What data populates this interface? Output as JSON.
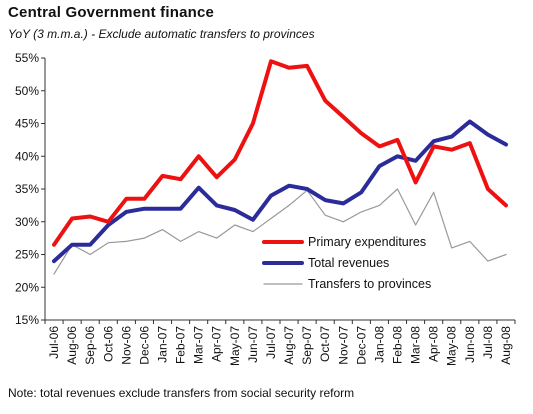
{
  "chart_data": {
    "type": "line",
    "title": "Central Government finance",
    "subtitle": "YoY (3 m.m.a.) - Exclude automatic transfers to provinces",
    "note": "Note: total revenues exclude transfers from social security reform",
    "ylim": [
      15,
      55
    ],
    "yticks": [
      "15%",
      "20%",
      "25%",
      "30%",
      "35%",
      "40%",
      "45%",
      "50%",
      "55%"
    ],
    "y_tick_values": [
      15,
      20,
      25,
      30,
      35,
      40,
      45,
      50,
      55
    ],
    "grid": false,
    "legend_placement": "bottom-right",
    "categories": [
      "Jul-06",
      "Aug-06",
      "Sep-06",
      "Oct-06",
      "Nov-06",
      "Dec-06",
      "Jan-07",
      "Feb-07",
      "Mar-07",
      "Apr-07",
      "May-07",
      "Jun-07",
      "Jul-07",
      "Aug-07",
      "Sep-07",
      "Oct-07",
      "Nov-07",
      "Dec-07",
      "Jan-08",
      "Feb-08",
      "Mar-08",
      "Apr-08",
      "May-08",
      "Jun-08",
      "Jul-08",
      "Aug-08"
    ],
    "series": [
      {
        "name": "Primary expenditures",
        "color": "#ee1111",
        "stroke": "thick",
        "values": [
          26.5,
          30.5,
          30.8,
          30,
          33.5,
          33.5,
          37,
          36.5,
          40,
          36.8,
          39.5,
          45,
          54.5,
          53.5,
          53.8,
          48.5,
          46,
          43.5,
          41.5,
          42.5,
          36,
          41.5,
          41,
          42,
          35,
          32.5
        ]
      },
      {
        "name": "Total revenues",
        "color": "#2b2b99",
        "stroke": "thick",
        "values": [
          24,
          26.5,
          26.5,
          29.5,
          31.5,
          32,
          32,
          32,
          35.2,
          32.5,
          31.8,
          30.3,
          34,
          35.5,
          35,
          33.3,
          32.8,
          34.5,
          38.5,
          40,
          39.3,
          42.3,
          43,
          45.3,
          43.3,
          41.8
        ]
      },
      {
        "name": "Transfers to provinces",
        "color": "#999999",
        "stroke": "thin",
        "values": [
          22,
          26.5,
          25,
          26.8,
          27,
          27.5,
          28.8,
          27,
          28.5,
          27.5,
          29.5,
          28.5,
          30.5,
          32.5,
          34.8,
          31,
          30,
          31.5,
          32.5,
          35,
          29.5,
          34.5,
          26,
          27,
          24,
          25
        ]
      }
    ]
  }
}
